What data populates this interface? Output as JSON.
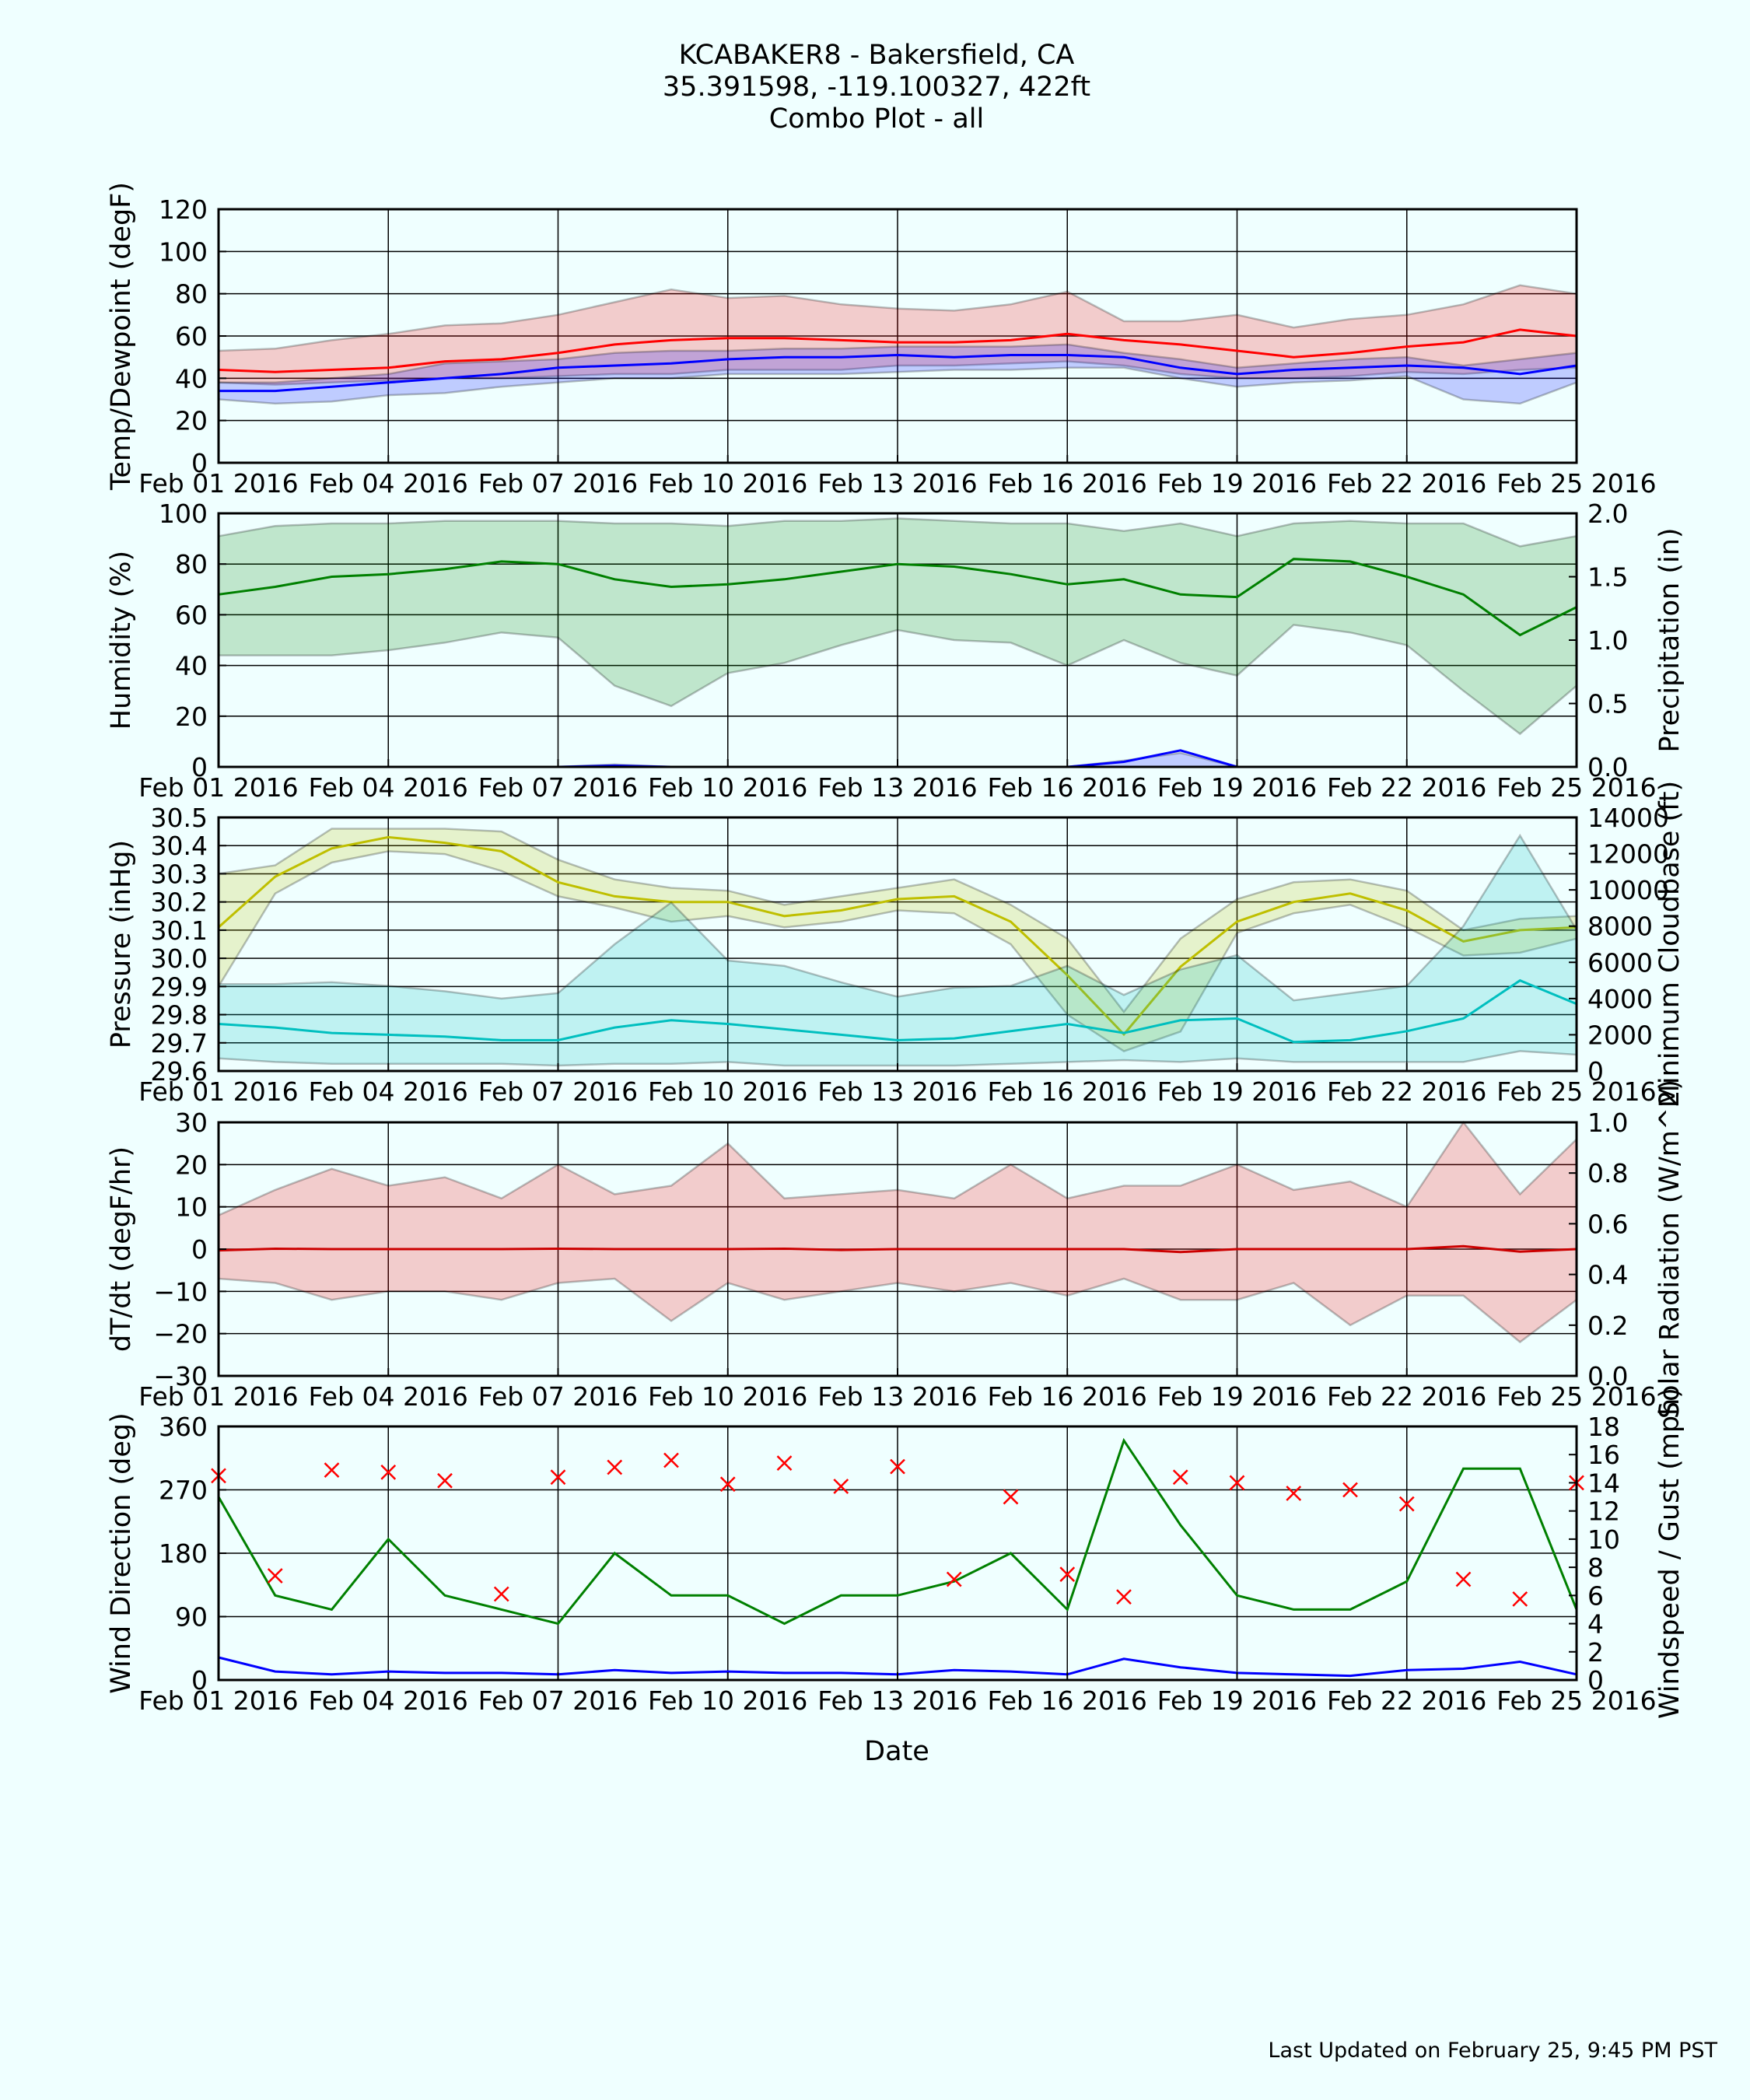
{
  "figure": {
    "title_line1": "KCABAKER8 - Bakersfield, CA",
    "title_line2": "35.391598, -119.100327, 422ft",
    "title_line3": "Combo Plot - all",
    "xlabel": "Date",
    "footer": "Last Updated on February 25, 9:45 PM PST"
  },
  "chart_data": [
    {
      "type": "line",
      "ylabel": "Temp/Dewpoint (degF)",
      "ylim": [
        0,
        120
      ],
      "yticks": [
        0,
        20,
        40,
        60,
        80,
        100,
        120
      ],
      "xlim": [
        1,
        25
      ],
      "xticks": [
        1,
        4,
        7,
        10,
        13,
        16,
        19,
        22,
        25
      ],
      "xtick_labels": [
        "Feb 01 2016",
        "Feb 04 2016",
        "Feb 07 2016",
        "Feb 10 2016",
        "Feb 13 2016",
        "Feb 16 2016",
        "Feb 19 2016",
        "Feb 22 2016",
        "Feb 25 2016"
      ],
      "grid": true,
      "x": [
        1,
        2,
        3,
        4,
        5,
        6,
        7,
        8,
        9,
        10,
        11,
        12,
        13,
        14,
        15,
        16,
        17,
        18,
        19,
        20,
        21,
        22,
        23,
        24,
        25
      ],
      "series": [
        {
          "axis": "left",
          "color": "#ff0000",
          "mean": [
            44,
            43,
            44,
            45,
            48,
            49,
            52,
            56,
            58,
            59,
            59,
            58,
            57,
            57,
            58,
            61,
            58,
            56,
            53,
            50,
            52,
            55,
            57,
            63,
            60
          ],
          "max": [
            53,
            54,
            58,
            61,
            65,
            66,
            70,
            76,
            82,
            78,
            79,
            75,
            73,
            72,
            75,
            81,
            67,
            67,
            70,
            64,
            68,
            70,
            75,
            84,
            80
          ],
          "min": [
            38,
            37,
            38,
            39,
            40,
            40,
            41,
            42,
            42,
            44,
            44,
            44,
            46,
            46,
            47,
            48,
            46,
            42,
            40,
            40,
            41,
            43,
            42,
            44,
            45
          ]
        },
        {
          "axis": "left",
          "color": "#0000ff",
          "mean": [
            34,
            34,
            36,
            38,
            40,
            42,
            45,
            46,
            47,
            49,
            50,
            50,
            51,
            50,
            51,
            51,
            50,
            45,
            42,
            44,
            45,
            46,
            45,
            42,
            46
          ],
          "max": [
            38,
            38,
            40,
            42,
            47,
            48,
            49,
            52,
            53,
            53,
            54,
            54,
            55,
            55,
            55,
            56,
            52,
            49,
            45,
            47,
            49,
            50,
            46,
            49,
            52
          ],
          "min": [
            30,
            28,
            29,
            32,
            33,
            36,
            38,
            40,
            40,
            42,
            42,
            42,
            43,
            44,
            44,
            45,
            45,
            40,
            36,
            38,
            39,
            41,
            30,
            28,
            38
          ]
        }
      ]
    },
    {
      "type": "line",
      "ylabel": "Humidity (%)",
      "ylabel_right": "Precipitation (in)",
      "ylim": [
        0,
        100
      ],
      "yticks": [
        0,
        20,
        40,
        60,
        80,
        100
      ],
      "ylim_right": [
        0,
        2.0
      ],
      "yticks_right": [
        "0.0",
        "0.5",
        "1.0",
        "1.5",
        "2.0"
      ],
      "xlim": [
        1,
        25
      ],
      "xticks": [
        1,
        4,
        7,
        10,
        13,
        16,
        19,
        22,
        25
      ],
      "xtick_labels": [
        "Feb 01 2016",
        "Feb 04 2016",
        "Feb 07 2016",
        "Feb 10 2016",
        "Feb 13 2016",
        "Feb 16 2016",
        "Feb 19 2016",
        "Feb 22 2016",
        "Feb 25 2016"
      ],
      "grid": true,
      "x": [
        1,
        2,
        3,
        4,
        5,
        6,
        7,
        8,
        9,
        10,
        11,
        12,
        13,
        14,
        15,
        16,
        17,
        18,
        19,
        20,
        21,
        22,
        23,
        24,
        25
      ],
      "series": [
        {
          "axis": "left",
          "color": "#008000",
          "mean": [
            68,
            71,
            75,
            76,
            78,
            81,
            80,
            74,
            71,
            72,
            74,
            77,
            80,
            79,
            76,
            72,
            74,
            68,
            67,
            82,
            81,
            75,
            68,
            52,
            63
          ],
          "max": [
            91,
            95,
            96,
            96,
            97,
            97,
            97,
            96,
            96,
            95,
            97,
            97,
            98,
            97,
            96,
            96,
            93,
            96,
            91,
            96,
            97,
            96,
            96,
            87,
            91
          ],
          "min": [
            44,
            44,
            44,
            46,
            49,
            53,
            51,
            32,
            24,
            37,
            41,
            48,
            54,
            50,
            49,
            40,
            50,
            41,
            36,
            56,
            53,
            48,
            30,
            13,
            32
          ]
        },
        {
          "axis": "right",
          "color": "#0000ff",
          "mean": [
            0,
            0,
            0,
            0,
            0,
            0,
            0,
            0.01,
            0,
            0,
            0,
            0,
            0,
            0,
            0,
            0,
            0.04,
            0.13,
            0,
            0,
            0,
            0,
            0,
            0,
            0
          ],
          "max": [
            0,
            0,
            0,
            0,
            0,
            0,
            0,
            0.02,
            0,
            0,
            0,
            0,
            0,
            0,
            0,
            0,
            0.05,
            0.11,
            0,
            0,
            0,
            0,
            0,
            0,
            0
          ],
          "min": [
            0,
            0,
            0,
            0,
            0,
            0,
            0,
            0,
            0,
            0,
            0,
            0,
            0,
            0,
            0,
            0,
            0,
            0,
            0,
            0,
            0,
            0,
            0,
            0,
            0
          ]
        }
      ]
    },
    {
      "type": "line",
      "ylabel": "Pressure (inHg)",
      "ylabel_right": "Minimum Cloudbase (ft)",
      "ylim": [
        29.6,
        30.5
      ],
      "yticks": [
        "29.6",
        "29.7",
        "29.8",
        "29.9",
        "30.0",
        "30.1",
        "30.2",
        "30.3",
        "30.4",
        "30.5"
      ],
      "ylim_right": [
        0,
        14000
      ],
      "yticks_right": [
        0,
        2000,
        4000,
        6000,
        8000,
        10000,
        12000,
        14000
      ],
      "xlim": [
        1,
        25
      ],
      "xticks": [
        1,
        4,
        7,
        10,
        13,
        16,
        19,
        22,
        25
      ],
      "xtick_labels": [
        "Feb 01 2016",
        "Feb 04 2016",
        "Feb 07 2016",
        "Feb 10 2016",
        "Feb 13 2016",
        "Feb 16 2016",
        "Feb 19 2016",
        "Feb 22 2016",
        "Feb 25 2016"
      ],
      "grid": true,
      "x": [
        1,
        2,
        3,
        4,
        5,
        6,
        7,
        8,
        9,
        10,
        11,
        12,
        13,
        14,
        15,
        16,
        17,
        18,
        19,
        20,
        21,
        22,
        23,
        24,
        25
      ],
      "series": [
        {
          "axis": "left",
          "color": "#bfbf00",
          "mean": [
            30.11,
            30.29,
            30.39,
            30.43,
            30.41,
            30.38,
            30.27,
            30.22,
            30.2,
            30.2,
            30.15,
            30.17,
            30.21,
            30.22,
            30.13,
            29.94,
            29.73,
            29.97,
            30.13,
            30.2,
            30.23,
            30.17,
            30.06,
            30.1,
            30.11
          ],
          "max": [
            30.3,
            30.33,
            30.46,
            30.46,
            30.46,
            30.45,
            30.35,
            30.28,
            30.25,
            30.24,
            30.19,
            30.22,
            30.25,
            30.28,
            30.19,
            30.07,
            29.81,
            30.07,
            30.21,
            30.27,
            30.28,
            30.24,
            30.1,
            30.14,
            30.15
          ],
          "min": [
            29.9,
            30.23,
            30.34,
            30.38,
            30.37,
            30.31,
            30.22,
            30.18,
            30.13,
            30.15,
            30.11,
            30.13,
            30.17,
            30.16,
            30.05,
            29.8,
            29.67,
            29.74,
            30.09,
            30.16,
            30.19,
            30.11,
            30.01,
            30.02,
            30.07
          ]
        },
        {
          "axis": "right",
          "color": "#00bfbf",
          "mean": [
            2600,
            2400,
            2100,
            2000,
            1900,
            1700,
            1700,
            2400,
            2800,
            2600,
            2300,
            2000,
            1700,
            1800,
            2200,
            2600,
            2100,
            2800,
            2900,
            1600,
            1700,
            2200,
            2900,
            5000,
            3700
          ],
          "max": [
            4800,
            4800,
            4900,
            4700,
            4400,
            4000,
            4300,
            7000,
            9300,
            6100,
            5800,
            4900,
            4100,
            4600,
            4700,
            5800,
            4200,
            5600,
            6400,
            3900,
            4300,
            4700,
            8000,
            13000,
            7800
          ],
          "min": [
            700,
            500,
            400,
            400,
            400,
            400,
            300,
            400,
            400,
            500,
            300,
            300,
            300,
            300,
            400,
            500,
            600,
            500,
            700,
            500,
            500,
            500,
            500,
            1100,
            900
          ]
        }
      ]
    },
    {
      "type": "line",
      "ylabel": "dT/dt (degF/hr)",
      "ylabel_right": "Solar Radiation (W/m^2)",
      "ylim": [
        -30,
        30
      ],
      "yticks": [
        "−30",
        "−20",
        "−10",
        "0",
        "10",
        "20",
        "30"
      ],
      "ylim_right": [
        0,
        1.0
      ],
      "yticks_right": [
        "0.0",
        "0.2",
        "0.4",
        "0.6",
        "0.8",
        "1.0"
      ],
      "xlim": [
        1,
        25
      ],
      "xticks": [
        1,
        4,
        7,
        10,
        13,
        16,
        19,
        22,
        25
      ],
      "xtick_labels": [
        "Feb 01 2016",
        "Feb 04 2016",
        "Feb 07 2016",
        "Feb 10 2016",
        "Feb 13 2016",
        "Feb 16 2016",
        "Feb 19 2016",
        "Feb 22 2016",
        "Feb 25 2016"
      ],
      "grid": true,
      "x": [
        1,
        2,
        3,
        4,
        5,
        6,
        7,
        8,
        9,
        10,
        11,
        12,
        13,
        14,
        15,
        16,
        17,
        18,
        19,
        20,
        21,
        22,
        23,
        24,
        25
      ],
      "series": [
        {
          "axis": "left",
          "color": "#cc0000",
          "mean": [
            -0.3,
            0.1,
            0,
            0,
            0,
            0,
            0.1,
            0,
            0,
            0,
            0.1,
            -0.2,
            0,
            0,
            0,
            0,
            0,
            -0.7,
            0,
            0,
            0,
            0,
            0.7,
            -0.6,
            0
          ],
          "max": [
            8,
            14,
            19,
            15,
            17,
            12,
            20,
            13,
            15,
            25,
            12,
            13,
            14,
            12,
            20,
            12,
            15,
            15,
            20,
            14,
            16,
            10,
            30,
            13,
            26
          ],
          "min": [
            -7,
            -8,
            -12,
            -10,
            -10,
            -12,
            -8,
            -7,
            -17,
            -8,
            -12,
            -10,
            -8,
            -10,
            -8,
            -11,
            -7,
            -12,
            -12,
            -8,
            -18,
            -11,
            -11,
            -22,
            -12
          ]
        }
      ]
    },
    {
      "type": "line",
      "ylabel": "Wind Direction (deg)",
      "ylabel_right": "Windspeed / Gust (mph)",
      "ylim": [
        0,
        360
      ],
      "yticks": [
        0,
        90,
        180,
        270,
        360
      ],
      "ylim_right": [
        0,
        18
      ],
      "yticks_right": [
        0,
        2,
        4,
        6,
        8,
        10,
        12,
        14,
        16,
        18
      ],
      "xlim": [
        1,
        25
      ],
      "xticks": [
        1,
        4,
        7,
        10,
        13,
        16,
        19,
        22,
        25
      ],
      "xtick_labels": [
        "Feb 01 2016",
        "Feb 04 2016",
        "Feb 07 2016",
        "Feb 10 2016",
        "Feb 13 2016",
        "Feb 16 2016",
        "Feb 19 2016",
        "Feb 22 2016",
        "Feb 25 2016"
      ],
      "grid": true,
      "x": [
        1,
        2,
        3,
        4,
        5,
        6,
        7,
        8,
        9,
        10,
        11,
        12,
        13,
        14,
        15,
        16,
        17,
        18,
        19,
        20,
        21,
        22,
        23,
        24,
        25
      ],
      "series": [
        {
          "axis": "right",
          "color": "#008000",
          "values": [
            13,
            6,
            5,
            10,
            6,
            5,
            4,
            9,
            6,
            6,
            4,
            6,
            6,
            7,
            9,
            5,
            17,
            11,
            6,
            5,
            5,
            7,
            15,
            15,
            5
          ]
        },
        {
          "axis": "right",
          "color": "#0000ff",
          "values": [
            1.6,
            0.6,
            0.4,
            0.6,
            0.5,
            0.5,
            0.4,
            0.7,
            0.5,
            0.6,
            0.5,
            0.5,
            0.4,
            0.7,
            0.6,
            0.4,
            1.5,
            0.9,
            0.5,
            0.4,
            0.3,
            0.7,
            0.8,
            1.3,
            0.4
          ]
        }
      ],
      "scatter": {
        "axis": "left",
        "color": "#ff0000",
        "marker": "x",
        "x": [
          1,
          2,
          3,
          4,
          5,
          6,
          7,
          8,
          9,
          10,
          11,
          12,
          13,
          14,
          15,
          16,
          17,
          18,
          19,
          20,
          21,
          22,
          23,
          24,
          25
        ],
        "values": [
          290,
          148,
          298,
          295,
          283,
          122,
          288,
          302,
          312,
          278,
          308,
          275,
          303,
          143,
          260,
          150,
          118,
          288,
          280,
          265,
          270,
          250,
          143,
          115,
          280
        ]
      }
    }
  ]
}
